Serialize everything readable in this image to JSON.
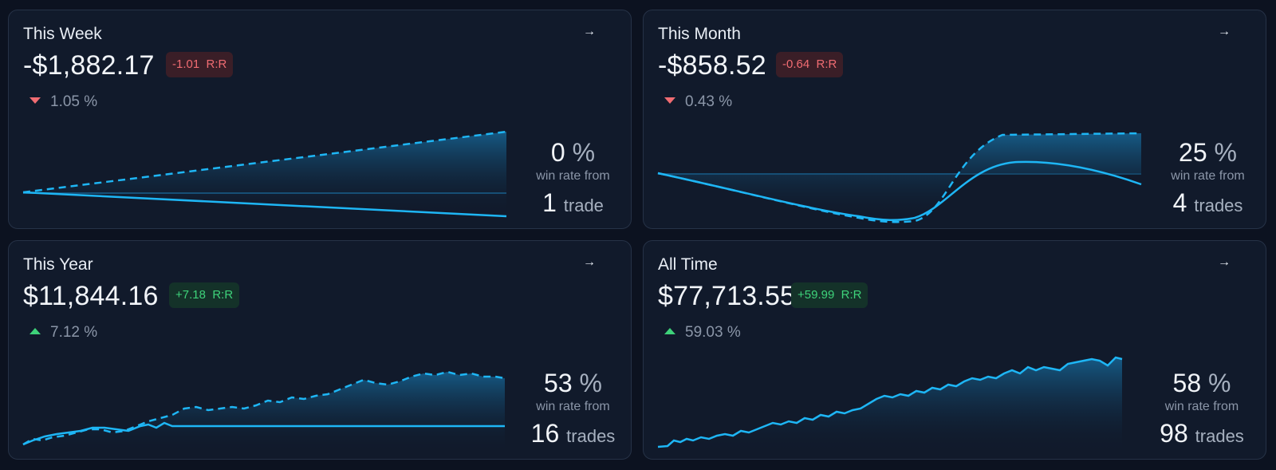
{
  "colors": {
    "line": "#1eb6f5",
    "negative": "#f06c72",
    "positive": "#3ed27a",
    "muted": "#8b96a8"
  },
  "icons": {
    "arrow": "arrow-right-icon",
    "down": "triangle-down-icon",
    "up": "triangle-up-icon"
  },
  "cards": [
    {
      "title": "This Week",
      "arrow": "→",
      "amount": "-$1,882.17",
      "rr_value": "-1.01",
      "rr_label": "R:R",
      "rr_sign": "neg",
      "change_pct": "1.05",
      "pct_sign": "%",
      "direction": "down",
      "win_rate": "0",
      "win_label": "win rate from",
      "trade_count": "1",
      "trade_unit": "trade"
    },
    {
      "title": "This Month",
      "arrow": "→",
      "amount": "-$858.52",
      "rr_value": "-0.64",
      "rr_label": "R:R",
      "rr_sign": "neg",
      "change_pct": "0.43",
      "pct_sign": "%",
      "direction": "down",
      "win_rate": "25",
      "win_label": "win rate from",
      "trade_count": "4",
      "trade_unit": "trades"
    },
    {
      "title": "This Year",
      "arrow": "→",
      "amount": "$11,844.16",
      "rr_value": "+7.18",
      "rr_label": "R:R",
      "rr_sign": "pos",
      "change_pct": "7.12",
      "pct_sign": "%",
      "direction": "up",
      "win_rate": "53",
      "win_label": "win rate from",
      "trade_count": "16",
      "trade_unit": "trades"
    },
    {
      "title": "All Time",
      "arrow": "→",
      "amount": "$77,713.55",
      "rr_value": "+59.99",
      "rr_label": "R:R",
      "rr_sign": "pos",
      "change_pct": "59.03",
      "pct_sign": "%",
      "direction": "up",
      "win_rate": "58",
      "win_label": "win rate from",
      "trade_count": "98",
      "trade_unit": "trades"
    }
  ]
}
